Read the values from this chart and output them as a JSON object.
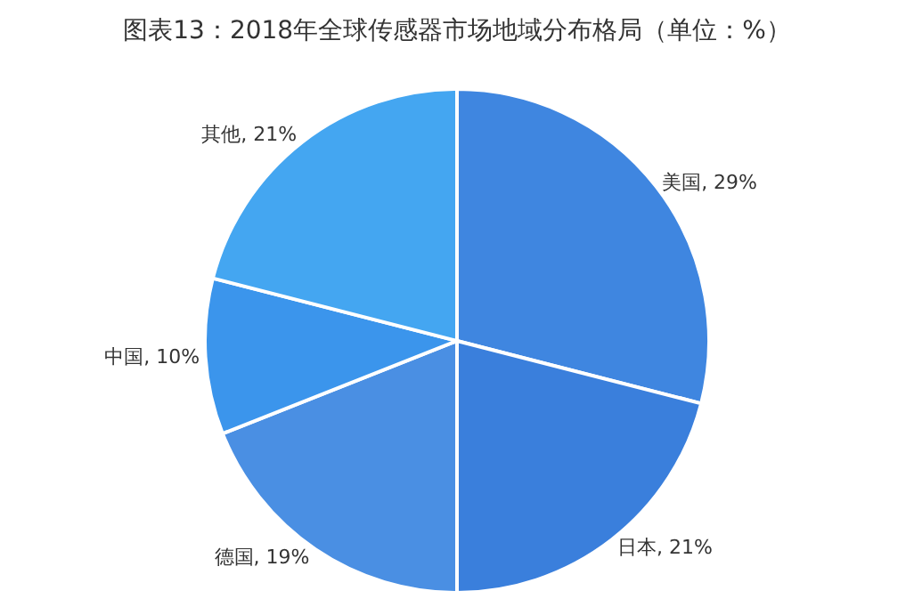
{
  "chart_data": {
    "type": "pie",
    "title": "图表13：2018年全球传感器市场地域分布格局（单位：%）",
    "categories": [
      "美国",
      "日本",
      "德国",
      "中国",
      "其他"
    ],
    "values": [
      29,
      21,
      19,
      10,
      21
    ],
    "value_labels": [
      "29%",
      "21%",
      "19%",
      "10%",
      "21%"
    ],
    "colors": [
      "#3f86e0",
      "#3a7fdc",
      "#4a8fe3",
      "#3b95ec",
      "#44a6f1"
    ],
    "legend": false
  }
}
